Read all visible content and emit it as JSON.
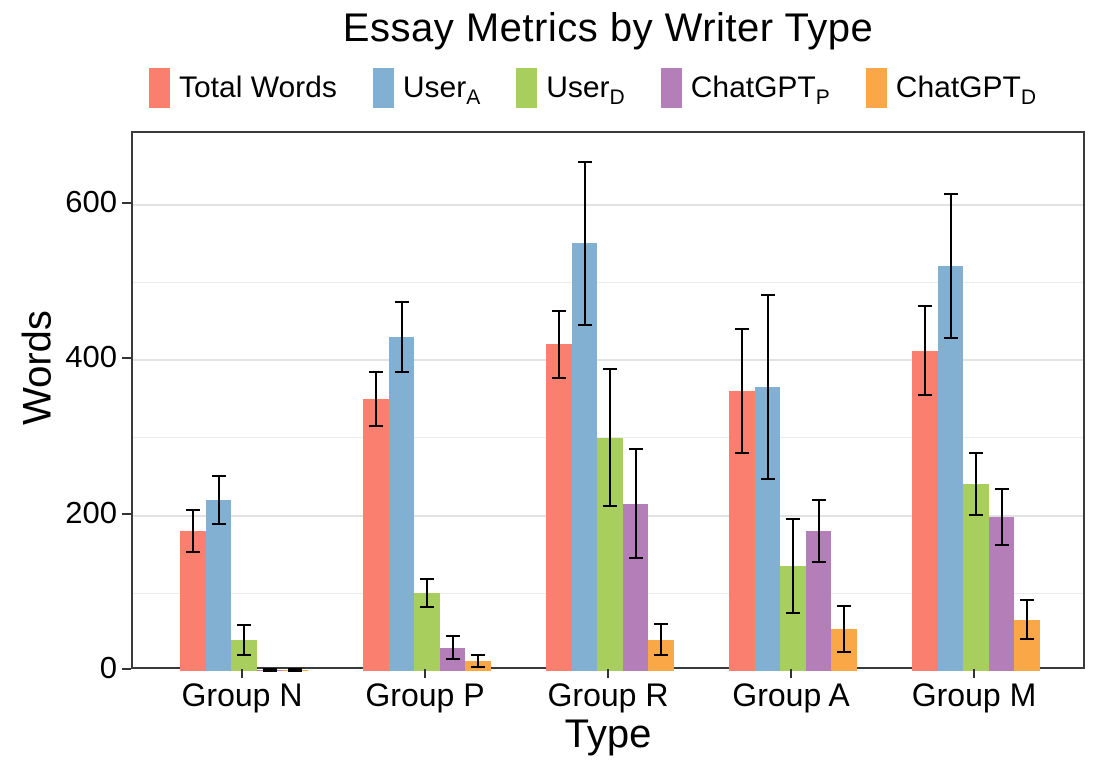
{
  "title": "Essay Metrics by Writer Type",
  "axes": {
    "y_title": "Words",
    "x_title": "Type"
  },
  "legend": {
    "position": "top",
    "items": [
      {
        "label": "Total Words",
        "sub": "",
        "color": "#FA7F6F"
      },
      {
        "label": "User",
        "sub": "A",
        "color": "#82B0D2"
      },
      {
        "label": "User",
        "sub": "D",
        "color": "#A8CF5E"
      },
      {
        "label": "ChatGPT",
        "sub": "P",
        "color": "#B47FB8"
      },
      {
        "label": "ChatGPT",
        "sub": "D",
        "color": "#FAA747"
      }
    ]
  },
  "chart_data": {
    "type": "bar",
    "title": "Essay Metrics by Writer Type",
    "xlabel": "Type",
    "ylabel": "Words",
    "categories": [
      "Group N",
      "Group P",
      "Group R",
      "Group A",
      "Group M"
    ],
    "series": [
      {
        "name": "Total Words",
        "sub": "",
        "color": "#FA7F6F",
        "values": [
          180,
          350,
          420,
          360,
          412
        ],
        "errors": [
          27,
          35,
          43,
          80,
          57
        ]
      },
      {
        "name": "User",
        "sub": "A",
        "color": "#82B0D2",
        "values": [
          220,
          430,
          550,
          365,
          521
        ],
        "errors": [
          31,
          45,
          105,
          118,
          93
        ]
      },
      {
        "name": "User",
        "sub": "D",
        "color": "#A8CF5E",
        "values": [
          40,
          100,
          300,
          135,
          241
        ],
        "errors": [
          19,
          18,
          88,
          60,
          40
        ]
      },
      {
        "name": "ChatGPT",
        "sub": "P",
        "color": "#B47FB8",
        "values": [
          1,
          30,
          215,
          180,
          198
        ],
        "errors": [
          2,
          15,
          70,
          40,
          36
        ]
      },
      {
        "name": "ChatGPT",
        "sub": "D",
        "color": "#FAA747",
        "values": [
          1,
          13,
          40,
          54,
          66
        ],
        "errors": [
          2,
          8,
          20,
          30,
          25
        ]
      }
    ],
    "yticks": [
      0,
      200,
      400,
      600
    ],
    "ylim": [
      0,
      692
    ],
    "grid": "horizontal lines every 100, light gray",
    "legend_position": "top",
    "error_bars": true,
    "error_bar_color": "#000000",
    "background": "#ffffff",
    "panel_border": "#3a3a3a"
  }
}
